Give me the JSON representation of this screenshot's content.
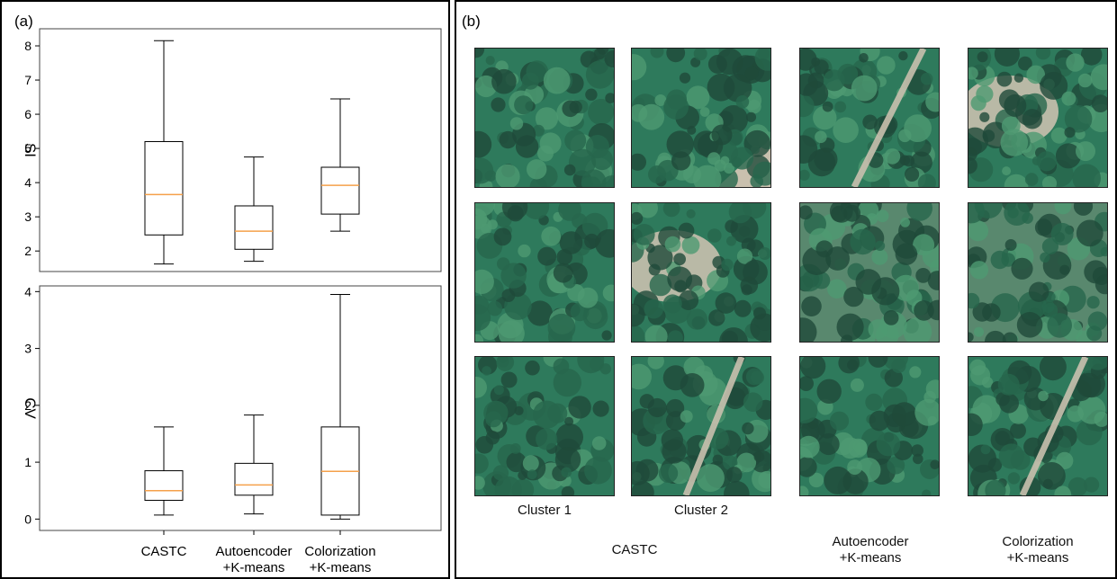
{
  "panel_a": {
    "label": "(a)"
  },
  "panel_b": {
    "label": "(b)",
    "cluster_labels": [
      "Cluster 1",
      "Cluster 2"
    ],
    "group_captions": [
      {
        "line1": "CASTC",
        "line2": ""
      },
      {
        "line1": "Autoencoder",
        "line2": "+K-means"
      },
      {
        "line1": "Colorization",
        "line2": "+K-means"
      }
    ],
    "columns": [
      {
        "label": "Cluster 1",
        "tiles": [
          "dense-canopy",
          "dense-canopy",
          "dense-canopy"
        ]
      },
      {
        "label": "Cluster 2",
        "tiles": [
          "canopy-bare-corner",
          "canopy-bare-patch",
          "canopy-path"
        ]
      },
      {
        "label": "Autoencoder +K-means",
        "tiles": [
          "canopy-path",
          "canopy-open",
          "dense-canopy"
        ]
      },
      {
        "label": "Colorization +K-means",
        "tiles": [
          "canopy-bare-patch",
          "canopy-open",
          "canopy-path"
        ]
      }
    ],
    "colors": {
      "canopy_dark": "#1f4a3a",
      "canopy_mid": "#2e7a5c",
      "canopy_light": "#4d9a72",
      "bare_ground": "#c9c0ae"
    }
  },
  "chart_data": [
    {
      "type": "box",
      "ylabel": "SI",
      "ylim": [
        1.4,
        8.5
      ],
      "yticks": [
        2,
        3,
        4,
        5,
        6,
        7,
        8
      ],
      "categories": [
        "CASTC",
        "Autoencoder\n+K-means",
        "Colorization\n+K-means"
      ],
      "boxes": [
        {
          "whisker_low": 1.62,
          "q1": 2.47,
          "median": 3.65,
          "q3": 5.2,
          "whisker_high": 8.15
        },
        {
          "whisker_low": 1.7,
          "q1": 2.05,
          "median": 2.58,
          "q3": 3.32,
          "whisker_high": 4.75
        },
        {
          "whisker_low": 2.58,
          "q1": 3.08,
          "median": 3.92,
          "q3": 4.45,
          "whisker_high": 6.45
        }
      ],
      "median_color": "#f5a04a"
    },
    {
      "type": "box",
      "ylabel": "CV",
      "ylim": [
        -0.2,
        4.1
      ],
      "yticks": [
        0,
        1,
        2,
        3,
        4
      ],
      "categories": [
        "CASTC",
        "Autoencoder\n+K-means",
        "Colorization\n+K-means"
      ],
      "boxes": [
        {
          "whisker_low": 0.07,
          "q1": 0.33,
          "median": 0.5,
          "q3": 0.85,
          "whisker_high": 1.62
        },
        {
          "whisker_low": 0.09,
          "q1": 0.42,
          "median": 0.6,
          "q3": 0.98,
          "whisker_high": 1.83
        },
        {
          "whisker_low": 0.0,
          "q1": 0.07,
          "median": 0.84,
          "q3": 1.62,
          "whisker_high": 3.95
        }
      ],
      "median_color": "#f5a04a"
    }
  ]
}
